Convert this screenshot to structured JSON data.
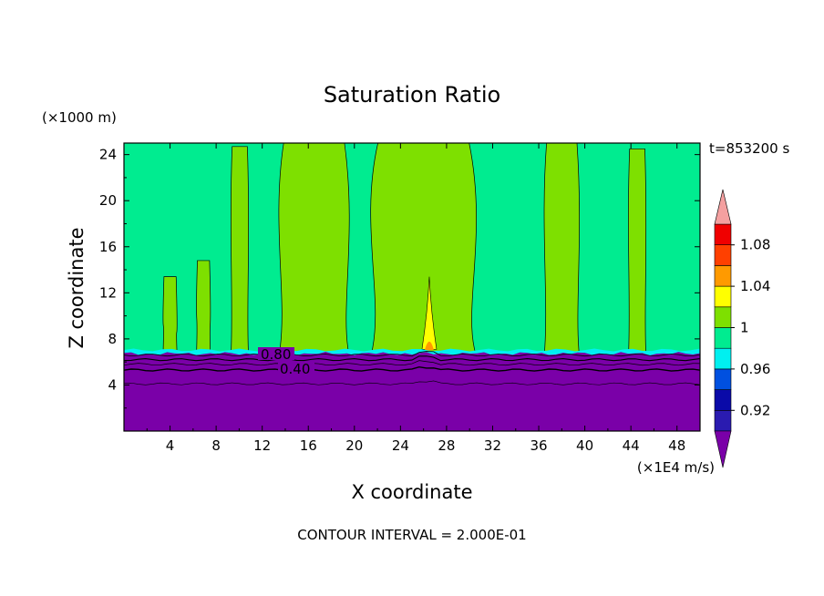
{
  "chart_data": {
    "type": "heatmap",
    "title": "Saturation Ratio",
    "xlabel": "X coordinate",
    "ylabel": "Z coordinate",
    "x_unit": "(×1E4 m/s)",
    "y_unit": "(×1000 m)",
    "time_label": "t=853200 s",
    "footer": "CONTOUR INTERVAL = 2.000E-01",
    "xlim": [
      0,
      50
    ],
    "ylim": [
      0,
      25
    ],
    "x_ticks": [
      "4",
      "8",
      "12",
      "16",
      "20",
      "24",
      "28",
      "32",
      "36",
      "40",
      "44",
      "48"
    ],
    "y_ticks": [
      "4",
      "8",
      "12",
      "16",
      "20",
      "24"
    ],
    "colorbar": {
      "tick_labels": [
        "0.92",
        "0.96",
        "1",
        "1.04",
        "1.08"
      ],
      "levels": [
        0.9,
        0.92,
        0.94,
        0.96,
        0.98,
        1.0,
        1.02,
        1.04,
        1.06,
        1.08,
        1.1
      ],
      "under_color": "#7a00a8",
      "over_color": "#f4a0a0",
      "colors": [
        "#2a1bb0",
        "#0a0aa8",
        "#0050e0",
        "#00f0f0",
        "#00ec90",
        "#7ee000",
        "#ffff00",
        "#ff9a00",
        "#ff4000",
        "#f00000"
      ]
    },
    "contour_labels": [
      "0.80",
      "0.40"
    ],
    "regions": {
      "subsaturated_layer_top_z": 6.8,
      "subsaturated_value": "< 0.9",
      "background_value": "0.98-1.00",
      "supersaturated_value": "1.00-1.02",
      "supersaturated_bands_x": [
        [
          3.4,
          4.6
        ],
        [
          6.3,
          7.5
        ],
        [
          9.3,
          10.8
        ],
        [
          13.5,
          19.5
        ],
        [
          21.5,
          30.5
        ],
        [
          36.5,
          39.5
        ],
        [
          43.8,
          45.3
        ]
      ],
      "peak_x": 26.5,
      "peak_z": 13.4
    }
  },
  "colors": {
    "background": "#ffffff",
    "axis": "#000000"
  }
}
